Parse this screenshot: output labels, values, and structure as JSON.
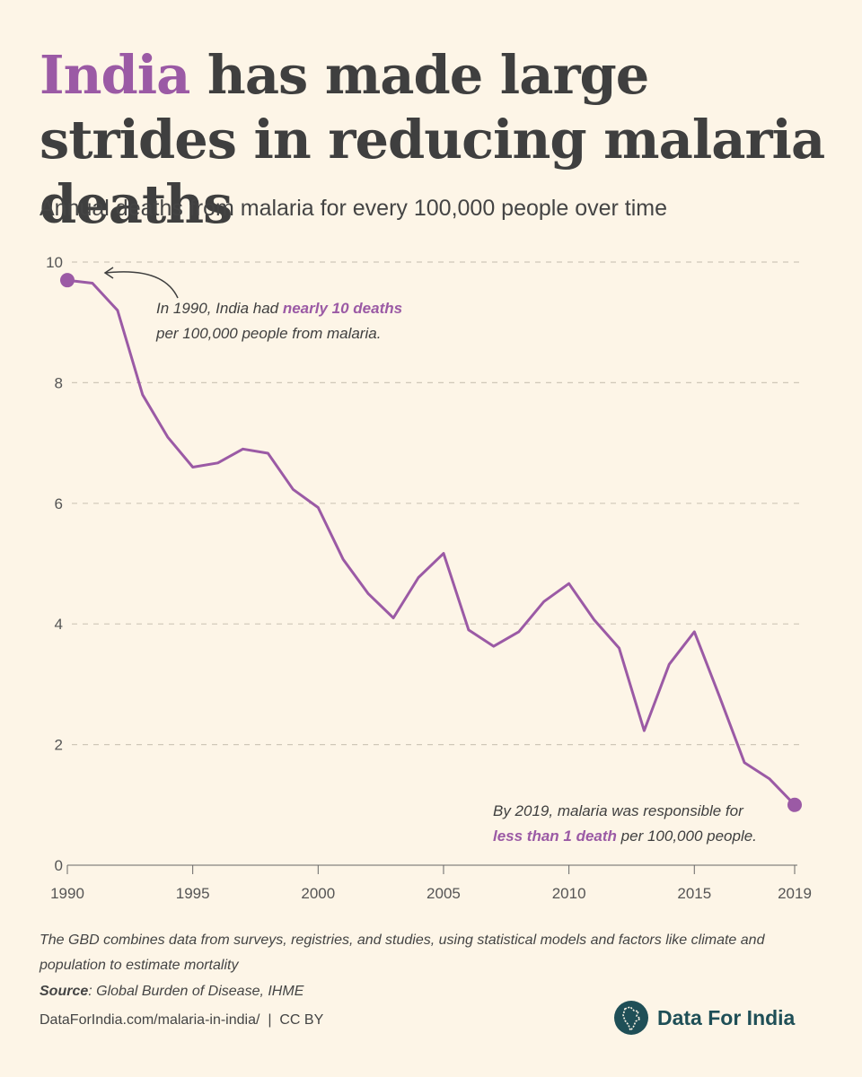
{
  "header": {
    "title_highlight": "India",
    "title_rest": " has made large strides in reducing malaria deaths",
    "subtitle": "Annual deaths from malaria for every 100,000 people over time"
  },
  "annotations": {
    "start": {
      "pre": "In 1990, India had ",
      "em": "nearly 10 deaths",
      "post": "per 100,000 people from malaria."
    },
    "end": {
      "pre": "By 2019, malaria was responsible for",
      "em": "less than 1 death",
      "post": " per 100,000 people."
    }
  },
  "footer": {
    "note": "The GBD combines data from surveys, registries, and studies, using statistical models and factors like climate and population to estimate mortality",
    "source_label": "Source",
    "source_text": ": Global Burden of Disease, IHME",
    "url": "DataForIndia.com/malaria-in-india/  |  CC BY",
    "brand": "Data For India"
  },
  "colors": {
    "line": "#9b5aa5",
    "text": "#3f3f3f",
    "brand": "#1f4f57",
    "background": "#fdf5e7"
  },
  "chart_data": {
    "type": "line",
    "title": "India has made large strides in reducing malaria deaths",
    "subtitle": "Annual deaths from malaria for every 100,000 people over time",
    "xlabel": "",
    "ylabel": "",
    "xlim": [
      1990,
      2019
    ],
    "ylim": [
      0,
      10
    ],
    "x_ticks": [
      1990,
      1995,
      2000,
      2005,
      2010,
      2015,
      2019
    ],
    "y_ticks": [
      0,
      2,
      4,
      6,
      8,
      10
    ],
    "grid": "horizontal dashed",
    "x": [
      1990,
      1991,
      1992,
      1993,
      1994,
      1995,
      1996,
      1997,
      1998,
      1999,
      2000,
      2001,
      2002,
      2003,
      2004,
      2005,
      2006,
      2007,
      2008,
      2009,
      2010,
      2011,
      2012,
      2013,
      2014,
      2015,
      2016,
      2017,
      2018,
      2019
    ],
    "values": [
      9.7,
      9.65,
      9.2,
      7.8,
      7.1,
      6.6,
      6.67,
      6.9,
      6.83,
      6.23,
      5.93,
      5.07,
      4.5,
      4.1,
      4.77,
      5.17,
      3.9,
      3.63,
      3.87,
      4.37,
      4.67,
      4.07,
      3.6,
      2.23,
      3.33,
      3.87,
      2.8,
      1.7,
      1.43,
      1.0
    ]
  }
}
